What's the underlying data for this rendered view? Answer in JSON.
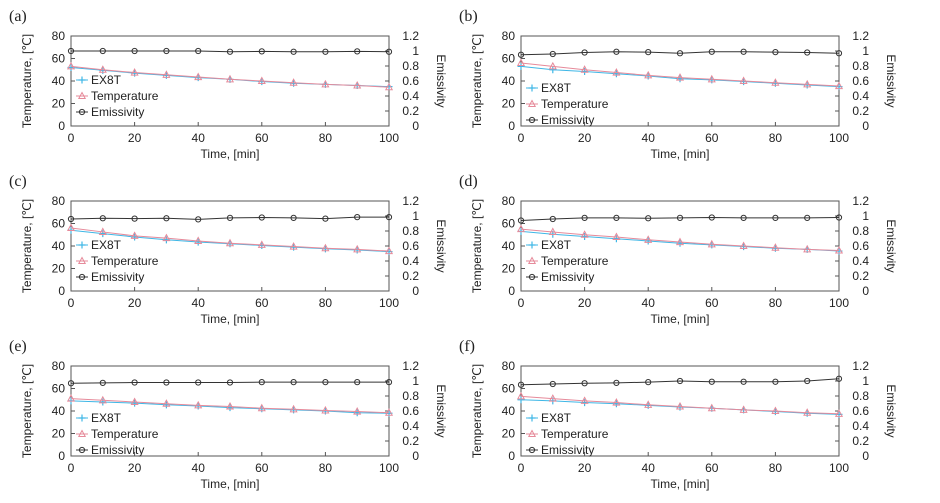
{
  "colors": {
    "ex8t": "#3fb7e6",
    "temperature": "#e68a9a",
    "emissivity": "#333333",
    "axis": "#555555"
  },
  "chart_data": [
    {
      "type": "line",
      "panel_label": "(a)",
      "xlabel": "Time, [min]",
      "ylabel": "Temperature, [℃]",
      "y2label": "Emissivity",
      "x_ticks": [
        "0",
        "20",
        "40",
        "60",
        "80",
        "100"
      ],
      "y_ticks": [
        "0",
        "20",
        "40",
        "60",
        "80"
      ],
      "y2_ticks": [
        "0",
        "0.2",
        "0.4",
        "0.6",
        "0.8",
        "1",
        "1.2"
      ],
      "xlim": [
        0,
        100
      ],
      "ylim": [
        0,
        80
      ],
      "y2lim": [
        0,
        1.2
      ],
      "legend_position": "left",
      "x": [
        0,
        10,
        20,
        30,
        40,
        50,
        60,
        70,
        80,
        90,
        100
      ],
      "series": [
        {
          "name": "EX8T",
          "axis": "left",
          "marker": "plus",
          "color": "#3fb7e6",
          "values": [
            52,
            49.5,
            47,
            45,
            43,
            41.5,
            39.5,
            38,
            37,
            36,
            35
          ]
        },
        {
          "name": "Temperature",
          "axis": "left",
          "marker": "triangle",
          "color": "#e68a9a",
          "values": [
            53,
            50,
            47.5,
            45.5,
            43.5,
            41.5,
            40,
            38.5,
            37,
            36,
            34.5
          ]
        },
        {
          "name": "Emissivity",
          "axis": "right",
          "marker": "circle",
          "color": "#333333",
          "values": [
            1.0,
            1.0,
            1.0,
            1.0,
            1.0,
            0.99,
            0.995,
            0.99,
            0.99,
            0.995,
            0.99
          ]
        }
      ]
    },
    {
      "type": "line",
      "panel_label": "(b)",
      "xlabel": "Time, [min]",
      "ylabel": "Temperature, [℃]",
      "y2label": "Emissivity",
      "x_ticks": [
        "0",
        "20",
        "40",
        "60",
        "80",
        "100"
      ],
      "y_ticks": [
        "0",
        "20",
        "40",
        "60",
        "80"
      ],
      "y2_ticks": [
        "0",
        "0.2",
        "0.4",
        "0.6",
        "0.8",
        "1",
        "1.2"
      ],
      "xlim": [
        0,
        100
      ],
      "ylim": [
        0,
        80
      ],
      "y2lim": [
        0,
        1.2
      ],
      "legend_position": "bottom-left",
      "x": [
        0,
        10,
        20,
        30,
        40,
        50,
        60,
        70,
        80,
        90,
        100
      ],
      "series": [
        {
          "name": "EX8T",
          "axis": "left",
          "marker": "plus",
          "color": "#3fb7e6",
          "values": [
            53,
            50,
            48.5,
            46.5,
            44.5,
            42,
            41,
            39.5,
            38,
            36.5,
            35
          ]
        },
        {
          "name": "Temperature",
          "axis": "left",
          "marker": "triangle",
          "color": "#e68a9a",
          "values": [
            56,
            53,
            50,
            47.5,
            45,
            43,
            41.5,
            40,
            38.5,
            37,
            35.5
          ]
        },
        {
          "name": "Emissivity",
          "axis": "right",
          "marker": "circle",
          "color": "#333333",
          "values": [
            0.95,
            0.96,
            0.98,
            0.99,
            0.985,
            0.97,
            0.99,
            0.99,
            0.985,
            0.98,
            0.97
          ]
        }
      ]
    },
    {
      "type": "line",
      "panel_label": "(c)",
      "xlabel": "Time, [min]",
      "ylabel": "Temperature, [℃]",
      "y2label": "Emissivity",
      "x_ticks": [
        "0",
        "20",
        "40",
        "60",
        "80",
        "100"
      ],
      "y_ticks": [
        "0",
        "20",
        "40",
        "60",
        "80"
      ],
      "y2_ticks": [
        "0",
        "0.2",
        "0.4",
        "0.6",
        "0.8",
        "1",
        "1.2"
      ],
      "xlim": [
        0,
        100
      ],
      "ylim": [
        0,
        80
      ],
      "y2lim": [
        0,
        1.2
      ],
      "legend_position": "left",
      "x": [
        0,
        10,
        20,
        30,
        40,
        50,
        60,
        70,
        80,
        90,
        100
      ],
      "series": [
        {
          "name": "EX8T",
          "axis": "left",
          "marker": "plus",
          "color": "#3fb7e6",
          "values": [
            54,
            51,
            48,
            45.5,
            43.5,
            42,
            40.5,
            39,
            37.5,
            36.5,
            35
          ]
        },
        {
          "name": "Temperature",
          "axis": "left",
          "marker": "triangle",
          "color": "#e68a9a",
          "values": [
            56,
            52.5,
            49,
            47,
            44.5,
            42.5,
            41,
            39.5,
            38,
            37,
            35.5
          ]
        },
        {
          "name": "Emissivity",
          "axis": "right",
          "marker": "circle",
          "color": "#333333",
          "values": [
            0.96,
            0.97,
            0.965,
            0.97,
            0.955,
            0.975,
            0.98,
            0.975,
            0.965,
            0.985,
            0.985
          ]
        }
      ]
    },
    {
      "type": "line",
      "panel_label": "(d)",
      "xlabel": "Time, [min]",
      "ylabel": "Temperature, [℃]",
      "y2label": "Emissivity",
      "x_ticks": [
        "0",
        "20",
        "40",
        "60",
        "80",
        "100"
      ],
      "y_ticks": [
        "0",
        "20",
        "40",
        "60",
        "80"
      ],
      "y2_ticks": [
        "0",
        "0.2",
        "0.4",
        "0.6",
        "0.8",
        "1",
        "1.2"
      ],
      "xlim": [
        0,
        100
      ],
      "ylim": [
        0,
        80
      ],
      "y2lim": [
        0,
        1.2
      ],
      "legend_position": "left",
      "x": [
        0,
        10,
        20,
        30,
        40,
        50,
        60,
        70,
        80,
        90,
        100
      ],
      "series": [
        {
          "name": "EX8T",
          "axis": "left",
          "marker": "plus",
          "color": "#3fb7e6",
          "values": [
            53,
            50.5,
            48.5,
            46.5,
            44.5,
            42.5,
            41,
            39.5,
            38,
            37,
            35.5
          ]
        },
        {
          "name": "Temperature",
          "axis": "left",
          "marker": "triangle",
          "color": "#e68a9a",
          "values": [
            55,
            52.5,
            50,
            48,
            45.5,
            43.5,
            41.5,
            40,
            38.5,
            37,
            36
          ]
        },
        {
          "name": "Emissivity",
          "axis": "right",
          "marker": "circle",
          "color": "#333333",
          "values": [
            0.94,
            0.96,
            0.975,
            0.975,
            0.97,
            0.975,
            0.98,
            0.975,
            0.975,
            0.975,
            0.98
          ]
        }
      ]
    },
    {
      "type": "line",
      "panel_label": "(e)",
      "xlabel": "Time, [min]",
      "ylabel": "Temperature, [℃]",
      "y2label": "Emissivity",
      "x_ticks": [
        "0",
        "20",
        "40",
        "60",
        "80",
        "100"
      ],
      "y_ticks": [
        "0",
        "20",
        "40",
        "60",
        "80"
      ],
      "y2_ticks": [
        "0",
        "0.2",
        "0.4",
        "0.6",
        "0.8",
        "1",
        "1.2"
      ],
      "xlim": [
        0,
        100
      ],
      "ylim": [
        0,
        80
      ],
      "y2lim": [
        0,
        1.2
      ],
      "legend_position": "bottom-left",
      "x": [
        0,
        10,
        20,
        30,
        40,
        50,
        60,
        70,
        80,
        90,
        100
      ],
      "series": [
        {
          "name": "EX8T",
          "axis": "left",
          "marker": "plus",
          "color": "#3fb7e6",
          "values": [
            49,
            48,
            47,
            45.5,
            44.5,
            43,
            42,
            41,
            40,
            38.5,
            38
          ]
        },
        {
          "name": "Temperature",
          "axis": "left",
          "marker": "triangle",
          "color": "#e68a9a",
          "values": [
            51,
            49.5,
            48,
            46.5,
            45,
            44,
            42.5,
            41.5,
            40.5,
            39.5,
            38.5
          ]
        },
        {
          "name": "Emissivity",
          "axis": "right",
          "marker": "circle",
          "color": "#333333",
          "values": [
            0.97,
            0.975,
            0.98,
            0.98,
            0.98,
            0.98,
            0.985,
            0.985,
            0.985,
            0.985,
            0.985
          ]
        }
      ]
    },
    {
      "type": "line",
      "panel_label": "(f)",
      "xlabel": "Time, [min]",
      "ylabel": "Temperature, [℃]",
      "y2label": "Emissivity",
      "x_ticks": [
        "0",
        "20",
        "40",
        "60",
        "80",
        "100"
      ],
      "y_ticks": [
        "0",
        "20",
        "40",
        "60",
        "80"
      ],
      "y2_ticks": [
        "0",
        "0.2",
        "0.4",
        "0.6",
        "0.8",
        "1",
        "1.2"
      ],
      "xlim": [
        0,
        100
      ],
      "ylim": [
        0,
        80
      ],
      "y2lim": [
        0,
        1.2
      ],
      "legend_position": "bottom-left",
      "x": [
        0,
        10,
        20,
        30,
        40,
        50,
        60,
        70,
        80,
        90,
        100
      ],
      "series": [
        {
          "name": "EX8T",
          "axis": "left",
          "marker": "plus",
          "color": "#3fb7e6",
          "values": [
            50,
            49,
            47.5,
            46.5,
            45,
            43.5,
            42.5,
            41,
            39.5,
            38,
            37
          ]
        },
        {
          "name": "Temperature",
          "axis": "left",
          "marker": "triangle",
          "color": "#e68a9a",
          "values": [
            53,
            51,
            49,
            47.5,
            45.5,
            44,
            42.5,
            41,
            40,
            38.5,
            37.5
          ]
        },
        {
          "name": "Emissivity",
          "axis": "right",
          "marker": "circle",
          "color": "#333333",
          "values": [
            0.95,
            0.96,
            0.97,
            0.975,
            0.985,
            1.0,
            0.99,
            0.99,
            0.99,
            1.0,
            1.03
          ]
        }
      ]
    }
  ]
}
